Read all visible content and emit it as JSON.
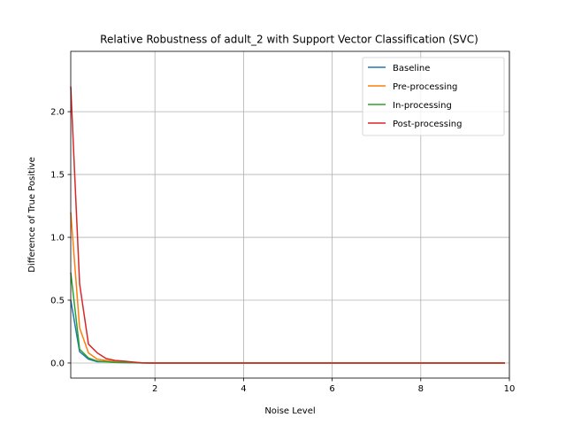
{
  "chart_data": {
    "type": "line",
    "title": "Relative Robustness of adult_2 with Support Vector Classification (SVC)",
    "xlabel": "Noise Level",
    "ylabel": "Difference of True Positive",
    "xlim": [
      0.1,
      10
    ],
    "ylim": [
      -0.12,
      2.48
    ],
    "xticks": [
      2,
      4,
      6,
      8,
      10
    ],
    "xtick_labels": [
      "2",
      "4",
      "6",
      "8",
      "10"
    ],
    "yticks": [
      0.0,
      0.5,
      1.0,
      1.5,
      2.0
    ],
    "ytick_labels": [
      "0.0",
      "0.5",
      "1.0",
      "1.5",
      "2.0"
    ],
    "grid": true,
    "legend_position": "top-right",
    "x": [
      0.1,
      0.3,
      0.5,
      0.7,
      0.9,
      1.1,
      1.3,
      1.5,
      1.7,
      1.9,
      2.1,
      2.3,
      2.5,
      2.7,
      2.9,
      3.1,
      3.3,
      3.5,
      3.7,
      3.9,
      4.1,
      4.3,
      4.5,
      4.7,
      4.9,
      5.1,
      5.3,
      5.5,
      5.7,
      5.9,
      6.1,
      6.3,
      6.5,
      6.7,
      6.9,
      7.1,
      7.3,
      7.5,
      7.7,
      7.9,
      8.1,
      8.3,
      8.5,
      8.7,
      8.9,
      9.1,
      9.3,
      9.5,
      9.7,
      9.9
    ],
    "series": [
      {
        "name": "Baseline",
        "color": "#1f77b4",
        "values": [
          0.5,
          0.09,
          0.03,
          0.01,
          0.01,
          0.005,
          0.003,
          0.002,
          0.001,
          0,
          0,
          0,
          0,
          0,
          0,
          0,
          0,
          0,
          0,
          0,
          0,
          0,
          0,
          0,
          0,
          0,
          0,
          0,
          0,
          0,
          0,
          0,
          0,
          0,
          0,
          0,
          0,
          0,
          0,
          0,
          0,
          0,
          0,
          0,
          0,
          0,
          0,
          0,
          0,
          0
        ]
      },
      {
        "name": "Pre-processing",
        "color": "#ff7f0e",
        "values": [
          1.2,
          0.28,
          0.08,
          0.03,
          0.02,
          0.01,
          0.006,
          0.003,
          0.001,
          0,
          0,
          0,
          0,
          0,
          0,
          0,
          0,
          0,
          0,
          0,
          0,
          0,
          0,
          0,
          0,
          0,
          0,
          0,
          0,
          0,
          0,
          0,
          0,
          0,
          0,
          0,
          0,
          0,
          0,
          0,
          0,
          0,
          0,
          0,
          0,
          0,
          0,
          0,
          0,
          0
        ]
      },
      {
        "name": "In-processing",
        "color": "#2ca02c",
        "values": [
          0.72,
          0.11,
          0.04,
          0.015,
          0.01,
          0.005,
          0.003,
          0.002,
          0.001,
          0,
          0,
          0,
          0,
          0,
          0,
          0,
          0,
          0,
          0,
          0,
          0,
          0,
          0,
          0,
          0,
          0,
          0,
          0,
          0,
          0,
          0,
          0,
          0,
          0,
          0,
          0,
          0,
          0,
          0,
          0,
          0,
          0,
          0,
          0,
          0,
          0,
          0,
          0,
          0,
          0
        ]
      },
      {
        "name": "Post-processing",
        "color": "#d62728",
        "values": [
          2.2,
          0.63,
          0.15,
          0.08,
          0.035,
          0.02,
          0.015,
          0.008,
          0.002,
          0,
          0,
          0,
          0,
          0,
          0,
          0,
          0,
          0,
          0,
          0,
          0,
          0,
          0,
          0,
          0,
          0,
          0,
          0,
          0,
          0,
          0,
          0,
          0,
          0,
          0,
          0,
          0,
          0,
          0,
          0,
          0,
          0,
          0,
          0,
          0,
          0,
          0,
          0,
          0,
          0
        ]
      }
    ]
  }
}
